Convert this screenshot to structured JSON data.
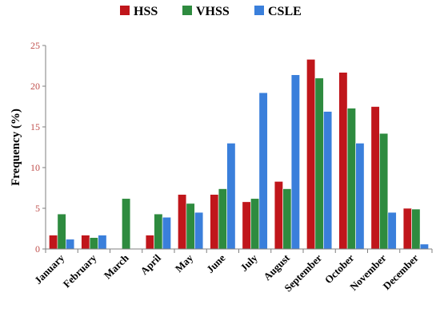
{
  "chart_data": {
    "type": "bar",
    "ylabel": "Frequency (%)",
    "xlabel": "",
    "ylim": [
      0,
      25
    ],
    "yticks": [
      0,
      5,
      10,
      15,
      20,
      25
    ],
    "grid": false,
    "legend_position": "top-center",
    "categories": [
      "January",
      "February",
      "March",
      "April",
      "May",
      "June",
      "July",
      "August",
      "September",
      "October",
      "November",
      "December"
    ],
    "series": [
      {
        "name": "HSS",
        "color": "#c0161b",
        "values": [
          1.7,
          1.7,
          0.0,
          1.7,
          6.7,
          6.7,
          5.8,
          8.3,
          23.3,
          21.7,
          17.5,
          5.0
        ]
      },
      {
        "name": "VHSS",
        "color": "#2e8b3f",
        "values": [
          4.3,
          1.4,
          6.2,
          4.3,
          5.6,
          7.4,
          6.2,
          7.4,
          21.0,
          17.3,
          14.2,
          4.9
        ]
      },
      {
        "name": "CSLE",
        "color": "#3a7fdb",
        "values": [
          1.2,
          1.7,
          0.0,
          3.9,
          4.5,
          13.0,
          19.2,
          21.4,
          16.9,
          13.0,
          4.5,
          0.6
        ]
      }
    ]
  }
}
